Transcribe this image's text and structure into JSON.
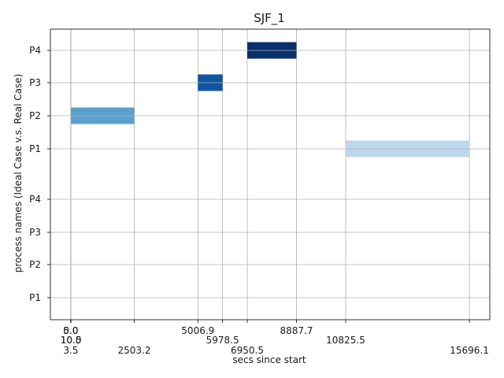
{
  "chart_data": {
    "type": "gantt",
    "title": "SJF_1",
    "xlabel": "secs since start",
    "ylabel": "process names (Ideal Case v.s. Real Case)",
    "grid": true,
    "xlim": [
      -800,
      16500
    ],
    "y_categories": [
      "P1",
      "P2",
      "P3",
      "P4",
      "P1",
      "P2",
      "P3",
      "P4"
    ],
    "x_ticks": [
      {
        "value": 0.0,
        "label": "0.0",
        "row": 0
      },
      {
        "value": 3.5,
        "label": "3.5",
        "row": 2
      },
      {
        "value": 5.0,
        "label": "5.0",
        "row": 0
      },
      {
        "value": 10.0,
        "label": "10.0",
        "row": 1
      },
      {
        "value": 10.5,
        "label": "10.5",
        "row": 1
      },
      {
        "value": 2503.2,
        "label": "2503.2",
        "row": 2
      },
      {
        "value": 5006.9,
        "label": "5006.9",
        "row": 0
      },
      {
        "value": 5978.5,
        "label": "5978.5",
        "row": 1
      },
      {
        "value": 6950.5,
        "label": "6950.5",
        "row": 2
      },
      {
        "value": 8887.7,
        "label": "8887.7",
        "row": 0
      },
      {
        "value": 10825.5,
        "label": "10825.5",
        "row": 1
      },
      {
        "value": 15696.1,
        "label": "15696.1",
        "row": 2
      }
    ],
    "bars": [
      {
        "process": "P2",
        "y_index": 5,
        "start": 10.5,
        "end": 2503.2,
        "color": "#5aa0cf"
      },
      {
        "process": "P3",
        "y_index": 6,
        "start": 5006.9,
        "end": 5978.5,
        "color": "#0e56a2"
      },
      {
        "process": "P4",
        "y_index": 7,
        "start": 6950.5,
        "end": 8887.7,
        "color": "#08306b"
      },
      {
        "process": "P1",
        "y_index": 4,
        "start": 10825.5,
        "end": 15696.1,
        "color": "#bcd6ea"
      }
    ],
    "colors": {
      "grid": "#b0b0b0",
      "axis": "#000000"
    }
  }
}
